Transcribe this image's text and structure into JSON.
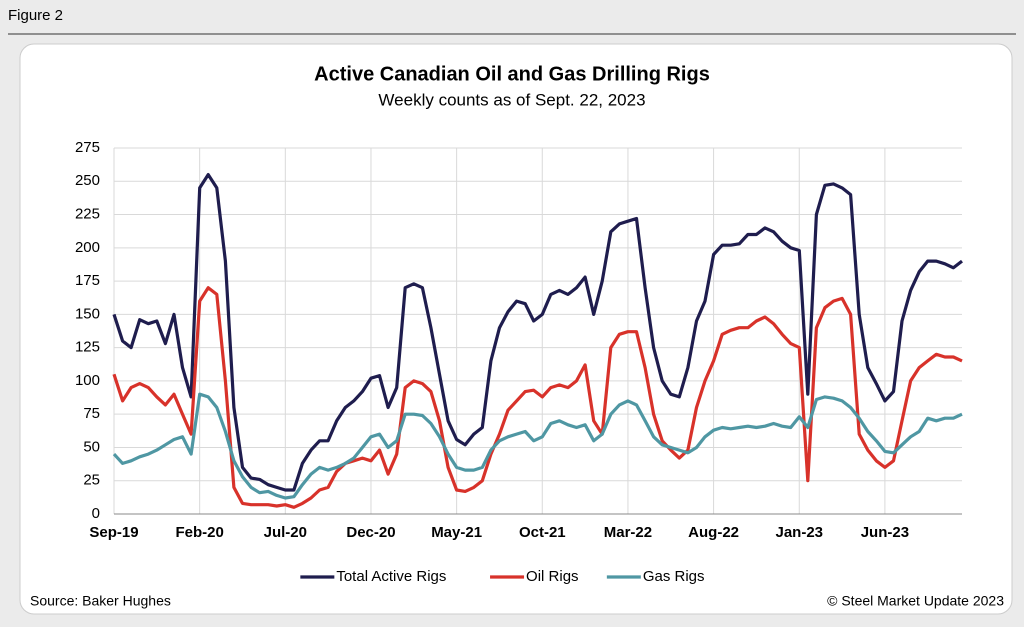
{
  "figure_label": "Figure 2",
  "source": "Source: Baker Hughes",
  "credit": "© Steel Market Update 2023",
  "chart_data": {
    "type": "line",
    "title": "Active Canadian Oil and Gas Drilling Rigs",
    "subtitle": "Weekly counts as of Sept. 22, 2023",
    "categories": [
      "Sep-19",
      null,
      null,
      null,
      null,
      null,
      null,
      null,
      null,
      null,
      "Feb-20",
      null,
      null,
      null,
      null,
      null,
      null,
      null,
      null,
      null,
      "Jul-20",
      null,
      null,
      null,
      null,
      null,
      null,
      null,
      null,
      null,
      "Dec-20",
      null,
      null,
      null,
      null,
      null,
      null,
      null,
      null,
      null,
      "May-21",
      null,
      null,
      null,
      null,
      null,
      null,
      null,
      null,
      null,
      "Oct-21",
      null,
      null,
      null,
      null,
      null,
      null,
      null,
      null,
      null,
      "Mar-22",
      null,
      null,
      null,
      null,
      null,
      null,
      null,
      null,
      null,
      "Aug-22",
      null,
      null,
      null,
      null,
      null,
      null,
      null,
      null,
      null,
      "Jan-23",
      null,
      null,
      null,
      null,
      null,
      null,
      null,
      null,
      null,
      "Jun-23",
      null,
      null,
      null,
      null,
      null,
      null,
      null,
      null,
      null
    ],
    "series": [
      {
        "name": "Total Active Rigs",
        "color": "#1f1d4e",
        "values": [
          150,
          130,
          125,
          146,
          143,
          145,
          128,
          150,
          110,
          88,
          245,
          255,
          245,
          190,
          80,
          35,
          27,
          26,
          22,
          20,
          18,
          18,
          38,
          48,
          55,
          55,
          70,
          80,
          85,
          92,
          102,
          104,
          80,
          95,
          170,
          173,
          170,
          140,
          105,
          70,
          56,
          52,
          60,
          65,
          115,
          140,
          152,
          160,
          158,
          145,
          150,
          165,
          168,
          165,
          170,
          178,
          150,
          175,
          212,
          218,
          220,
          222,
          170,
          125,
          100,
          90,
          88,
          110,
          145,
          160,
          195,
          202,
          202,
          203,
          210,
          210,
          215,
          212,
          205,
          200,
          198,
          90,
          225,
          247,
          248,
          245,
          240,
          150,
          110,
          98,
          85,
          92,
          145,
          168,
          182,
          190,
          190,
          188,
          185,
          190
        ]
      },
      {
        "name": "Oil Rigs",
        "color": "#d8322a",
        "values": [
          105,
          85,
          95,
          98,
          95,
          88,
          82,
          90,
          75,
          60,
          160,
          170,
          165,
          100,
          20,
          8,
          7,
          7,
          7,
          6,
          7,
          5,
          8,
          12,
          18,
          20,
          32,
          38,
          40,
          42,
          40,
          48,
          30,
          45,
          95,
          100,
          98,
          92,
          70,
          35,
          18,
          17,
          20,
          25,
          45,
          60,
          78,
          85,
          92,
          93,
          88,
          95,
          97,
          95,
          100,
          112,
          70,
          60,
          125,
          135,
          137,
          137,
          110,
          75,
          55,
          48,
          42,
          48,
          80,
          100,
          115,
          135,
          138,
          140,
          140,
          145,
          148,
          143,
          135,
          128,
          125,
          25,
          140,
          155,
          160,
          162,
          150,
          60,
          48,
          40,
          35,
          40,
          70,
          100,
          110,
          115,
          120,
          118,
          118,
          115
        ]
      },
      {
        "name": "Gas Rigs",
        "color": "#4f97a3",
        "values": [
          45,
          38,
          40,
          43,
          45,
          48,
          52,
          56,
          58,
          45,
          90,
          88,
          80,
          62,
          40,
          28,
          20,
          16,
          17,
          14,
          12,
          13,
          22,
          30,
          35,
          33,
          35,
          38,
          42,
          50,
          58,
          60,
          50,
          55,
          75,
          75,
          74,
          68,
          58,
          45,
          35,
          33,
          33,
          35,
          48,
          55,
          58,
          60,
          62,
          55,
          58,
          68,
          70,
          67,
          65,
          67,
          55,
          60,
          75,
          82,
          85,
          82,
          70,
          58,
          52,
          50,
          48,
          46,
          50,
          58,
          63,
          65,
          64,
          65,
          66,
          65,
          66,
          68,
          66,
          65,
          73,
          65,
          86,
          88,
          87,
          85,
          80,
          72,
          62,
          55,
          47,
          46,
          52,
          58,
          62,
          72,
          70,
          72,
          72,
          75
        ]
      }
    ],
    "ylim": [
      0,
      275
    ],
    "yticks": [
      0,
      25,
      50,
      75,
      100,
      125,
      150,
      175,
      200,
      225,
      250,
      275
    ],
    "grid": true,
    "legend": "bottom"
  }
}
